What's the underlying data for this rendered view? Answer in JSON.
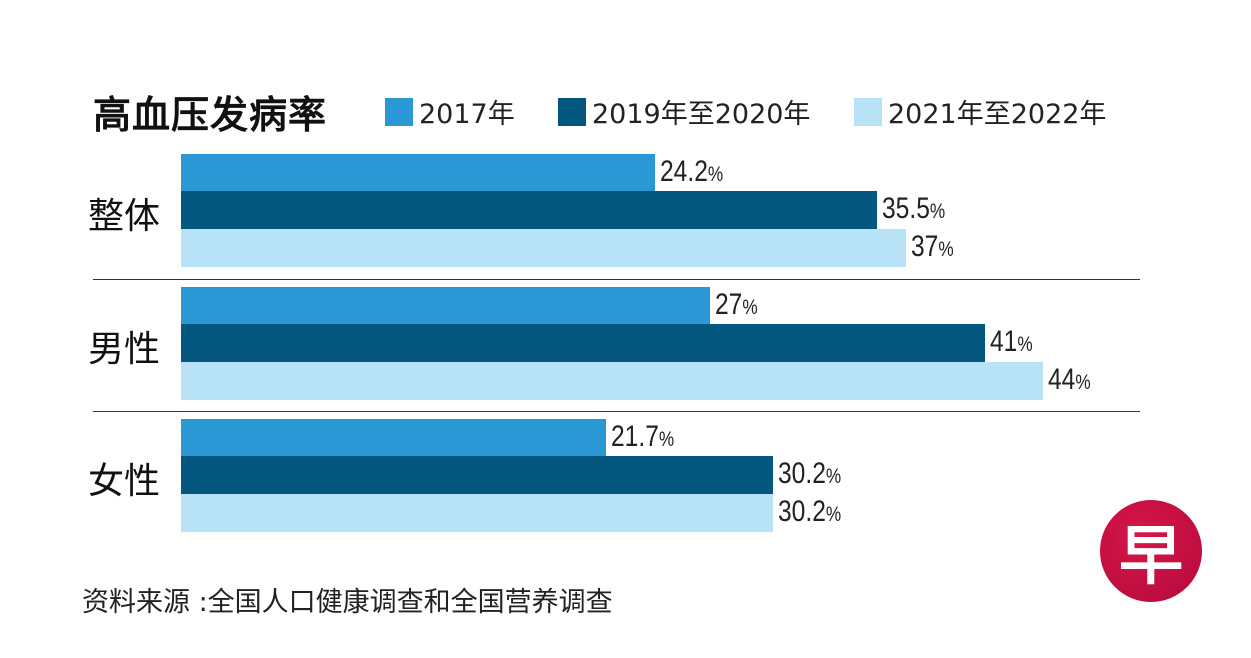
{
  "chart_data": {
    "type": "bar",
    "orientation": "horizontal",
    "title": "高血压发病率",
    "categories": [
      "整体",
      "男性",
      "女性"
    ],
    "unit": "%",
    "series": [
      {
        "name": "2017年",
        "color": "#2a98d4",
        "values": [
          24.2,
          27,
          21.7
        ],
        "labels": [
          "24.2",
          "27",
          "21.7"
        ]
      },
      {
        "name": "2019年至2020年",
        "color": "#04577f",
        "values": [
          35.5,
          41,
          30.2
        ],
        "labels": [
          "35.5",
          "41",
          "30.2"
        ]
      },
      {
        "name": "2021年至2022年",
        "color": "#b8e2f6",
        "values": [
          37,
          44,
          30.2
        ],
        "labels": [
          "37",
          "44",
          "30.2"
        ]
      }
    ],
    "xlim": [
      0,
      50
    ],
    "grid": false,
    "legend": "top"
  },
  "source": "资料来源 :全国人口健康调查和全国营养调查",
  "logo_text": "早"
}
